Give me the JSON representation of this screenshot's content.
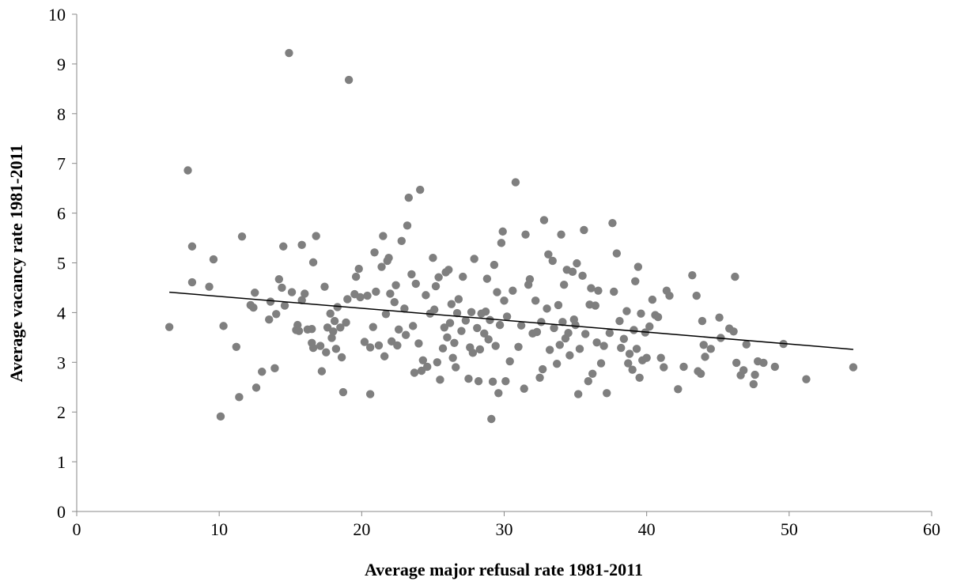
{
  "chart_data": {
    "type": "scatter",
    "title": "",
    "xlabel": "Average major refusal rate 1981-2011",
    "ylabel": "Average vacancy rate 1981-2011",
    "xlim": [
      0,
      60
    ],
    "ylim": [
      0,
      10
    ],
    "x_ticks": [
      0,
      10,
      20,
      30,
      40,
      50,
      60
    ],
    "y_ticks": [
      0,
      1,
      2,
      3,
      4,
      5,
      6,
      7,
      8,
      9,
      10
    ],
    "grid": false,
    "legend": "none",
    "marker_color": "#7f7f7f",
    "trendline": {
      "type": "linear",
      "x": [
        6.5,
        54.5
      ],
      "y": [
        4.41,
        3.26
      ],
      "color": "#000000"
    },
    "series": [
      {
        "points": [
          [
            6.5,
            3.71
          ],
          [
            7.8,
            6.86
          ],
          [
            8.1,
            5.33
          ],
          [
            8.1,
            4.61
          ],
          [
            9.3,
            4.52
          ],
          [
            9.6,
            5.07
          ],
          [
            10.1,
            1.91
          ],
          [
            10.3,
            3.73
          ],
          [
            11.2,
            3.31
          ],
          [
            11.4,
            2.3
          ],
          [
            11.6,
            5.53
          ],
          [
            12.2,
            4.15
          ],
          [
            12.4,
            4.1
          ],
          [
            12.5,
            4.4
          ],
          [
            12.6,
            2.49
          ],
          [
            13,
            2.81
          ],
          [
            13.5,
            3.86
          ],
          [
            13.6,
            4.22
          ],
          [
            13.9,
            2.88
          ],
          [
            14,
            3.97
          ],
          [
            14.2,
            4.67
          ],
          [
            14.4,
            4.5
          ],
          [
            14.5,
            5.33
          ],
          [
            14.6,
            4.14
          ],
          [
            14.9,
            9.22
          ],
          [
            15.1,
            4.41
          ],
          [
            15.4,
            3.65
          ],
          [
            15.5,
            3.75
          ],
          [
            15.6,
            3.63
          ],
          [
            15.8,
            4.25
          ],
          [
            15.8,
            5.36
          ],
          [
            16,
            4.38
          ],
          [
            16.2,
            3.66
          ],
          [
            16.5,
            3.67
          ],
          [
            16.5,
            3.39
          ],
          [
            16.6,
            5.01
          ],
          [
            16.6,
            3.29
          ],
          [
            16.8,
            5.54
          ],
          [
            17.1,
            3.33
          ],
          [
            17.2,
            2.82
          ],
          [
            17.4,
            4.52
          ],
          [
            17.5,
            3.2
          ],
          [
            17.6,
            3.7
          ],
          [
            17.8,
            3.98
          ],
          [
            17.9,
            3.49
          ],
          [
            18,
            3.62
          ],
          [
            18.1,
            3.83
          ],
          [
            18.2,
            3.27
          ],
          [
            18.3,
            4.11
          ],
          [
            18.5,
            3.7
          ],
          [
            18.6,
            3.1
          ],
          [
            18.7,
            2.4
          ],
          [
            18.9,
            3.8
          ],
          [
            19,
            4.27
          ],
          [
            19.1,
            8.68
          ],
          [
            19.5,
            4.37
          ],
          [
            19.6,
            4.72
          ],
          [
            19.8,
            4.88
          ],
          [
            19.9,
            4.31
          ],
          [
            20.2,
            3.41
          ],
          [
            20.4,
            4.34
          ],
          [
            20.6,
            3.3
          ],
          [
            20.6,
            2.36
          ],
          [
            20.8,
            3.71
          ],
          [
            20.9,
            5.21
          ],
          [
            21,
            4.42
          ],
          [
            21.2,
            3.34
          ],
          [
            21.4,
            4.92
          ],
          [
            21.5,
            5.54
          ],
          [
            21.6,
            3.12
          ],
          [
            21.7,
            3.97
          ],
          [
            21.8,
            5.04
          ],
          [
            21.9,
            5.1
          ],
          [
            22,
            4.38
          ],
          [
            22.1,
            3.42
          ],
          [
            22.3,
            4.21
          ],
          [
            22.4,
            4.55
          ],
          [
            22.5,
            3.34
          ],
          [
            22.6,
            3.66
          ],
          [
            22.8,
            5.44
          ],
          [
            23,
            4.08
          ],
          [
            23.1,
            3.55
          ],
          [
            23.2,
            5.75
          ],
          [
            23.3,
            6.31
          ],
          [
            23.5,
            4.77
          ],
          [
            23.6,
            3.73
          ],
          [
            23.7,
            2.79
          ],
          [
            23.8,
            4.58
          ],
          [
            24,
            3.38
          ],
          [
            24.1,
            6.47
          ],
          [
            24.2,
            2.83
          ],
          [
            24.3,
            3.04
          ],
          [
            24.5,
            4.35
          ],
          [
            24.6,
            2.91
          ],
          [
            24.8,
            3.98
          ],
          [
            25,
            5.1
          ],
          [
            25.1,
            4.06
          ],
          [
            25.2,
            4.53
          ],
          [
            25.3,
            3
          ],
          [
            25.4,
            4.71
          ],
          [
            25.5,
            2.65
          ],
          [
            25.7,
            3.28
          ],
          [
            25.8,
            3.7
          ],
          [
            25.9,
            4.81
          ],
          [
            26,
            3.5
          ],
          [
            26.1,
            4.86
          ],
          [
            26.2,
            3.79
          ],
          [
            26.3,
            4.17
          ],
          [
            26.4,
            3.09
          ],
          [
            26.5,
            3.39
          ],
          [
            26.6,
            2.9
          ],
          [
            26.7,
            3.99
          ],
          [
            26.8,
            4.27
          ],
          [
            27,
            3.63
          ],
          [
            27.1,
            4.72
          ],
          [
            27.3,
            3.84
          ],
          [
            27.5,
            2.67
          ],
          [
            27.6,
            3.3
          ],
          [
            27.7,
            4.01
          ],
          [
            27.8,
            3.19
          ],
          [
            27.9,
            5.08
          ],
          [
            28.1,
            3.69
          ],
          [
            28.2,
            2.62
          ],
          [
            28.3,
            3.26
          ],
          [
            28.4,
            3.98
          ],
          [
            28.6,
            3.58
          ],
          [
            28.7,
            4.02
          ],
          [
            28.8,
            4.68
          ],
          [
            28.9,
            3.46
          ],
          [
            29,
            3.85
          ],
          [
            29.1,
            1.86
          ],
          [
            29.2,
            2.61
          ],
          [
            29.3,
            4.96
          ],
          [
            29.4,
            3.33
          ],
          [
            29.5,
            4.41
          ],
          [
            29.6,
            2.38
          ],
          [
            29.7,
            3.75
          ],
          [
            29.8,
            5.4
          ],
          [
            29.9,
            5.63
          ],
          [
            30,
            4.24
          ],
          [
            30.1,
            2.62
          ],
          [
            30.2,
            3.92
          ],
          [
            30.4,
            3.02
          ],
          [
            30.6,
            4.44
          ],
          [
            30.8,
            6.62
          ],
          [
            31,
            3.31
          ],
          [
            31.2,
            3.74
          ],
          [
            31.4,
            2.47
          ],
          [
            31.5,
            5.57
          ],
          [
            31.7,
            4.56
          ],
          [
            31.8,
            4.67
          ],
          [
            32,
            3.58
          ],
          [
            32.2,
            4.24
          ],
          [
            32.3,
            3.61
          ],
          [
            32.5,
            2.69
          ],
          [
            32.6,
            3.81
          ],
          [
            32.7,
            2.86
          ],
          [
            32.8,
            5.86
          ],
          [
            33,
            4.08
          ],
          [
            33.1,
            5.17
          ],
          [
            33.2,
            3.25
          ],
          [
            33.4,
            5.04
          ],
          [
            33.5,
            3.69
          ],
          [
            33.7,
            2.97
          ],
          [
            33.8,
            4.15
          ],
          [
            33.9,
            3.35
          ],
          [
            34,
            5.57
          ],
          [
            34.1,
            3.81
          ],
          [
            34.2,
            4.56
          ],
          [
            34.3,
            3.48
          ],
          [
            34.4,
            4.86
          ],
          [
            34.5,
            3.59
          ],
          [
            34.6,
            3.14
          ],
          [
            34.8,
            4.82
          ],
          [
            34.9,
            3.86
          ],
          [
            35,
            3.75
          ],
          [
            35.1,
            4.99
          ],
          [
            35.2,
            2.36
          ],
          [
            35.3,
            3.27
          ],
          [
            35.5,
            4.74
          ],
          [
            35.6,
            5.66
          ],
          [
            35.7,
            3.57
          ],
          [
            35.9,
            2.62
          ],
          [
            36,
            4.16
          ],
          [
            36.1,
            4.49
          ],
          [
            36.2,
            2.77
          ],
          [
            36.4,
            4.14
          ],
          [
            36.5,
            3.4
          ],
          [
            36.6,
            4.44
          ],
          [
            36.8,
            2.98
          ],
          [
            37,
            3.33
          ],
          [
            37.2,
            2.38
          ],
          [
            37.4,
            3.59
          ],
          [
            37.6,
            5.8
          ],
          [
            37.7,
            4.42
          ],
          [
            37.9,
            5.19
          ],
          [
            38.1,
            3.83
          ],
          [
            38.2,
            3.29
          ],
          [
            38.4,
            3.47
          ],
          [
            38.6,
            4.03
          ],
          [
            38.7,
            2.98
          ],
          [
            38.8,
            3.17
          ],
          [
            39,
            2.85
          ],
          [
            39.1,
            3.65
          ],
          [
            39.2,
            4.63
          ],
          [
            39.3,
            3.27
          ],
          [
            39.4,
            4.92
          ],
          [
            39.5,
            2.69
          ],
          [
            39.6,
            3.98
          ],
          [
            39.7,
            3.04
          ],
          [
            39.9,
            3.6
          ],
          [
            40,
            3.09
          ],
          [
            40.2,
            3.72
          ],
          [
            40.4,
            4.26
          ],
          [
            40.6,
            3.95
          ],
          [
            40.8,
            3.91
          ],
          [
            41,
            3.09
          ],
          [
            41.2,
            2.9
          ],
          [
            41.4,
            4.44
          ],
          [
            41.6,
            4.34
          ],
          [
            42.2,
            2.46
          ],
          [
            42.6,
            2.91
          ],
          [
            43.2,
            4.75
          ],
          [
            43.5,
            4.34
          ],
          [
            43.6,
            2.82
          ],
          [
            43.8,
            2.77
          ],
          [
            43.9,
            3.83
          ],
          [
            44,
            3.35
          ],
          [
            44.1,
            3.11
          ],
          [
            44.5,
            3.27
          ],
          [
            45.1,
            3.9
          ],
          [
            45.2,
            3.49
          ],
          [
            45.8,
            3.68
          ],
          [
            46.1,
            3.62
          ],
          [
            46.2,
            4.72
          ],
          [
            46.3,
            2.99
          ],
          [
            46.6,
            2.74
          ],
          [
            46.8,
            2.84
          ],
          [
            47,
            3.36
          ],
          [
            47.5,
            2.56
          ],
          [
            47.6,
            2.75
          ],
          [
            47.8,
            3.02
          ],
          [
            48.2,
            2.99
          ],
          [
            49,
            2.91
          ],
          [
            49.6,
            3.37
          ],
          [
            51.2,
            2.66
          ],
          [
            54.5,
            2.9
          ]
        ]
      }
    ]
  }
}
